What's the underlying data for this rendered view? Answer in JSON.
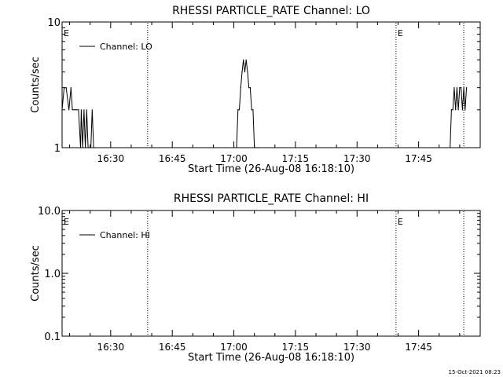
{
  "colors": {
    "background": "#ffffff",
    "foreground": "#000000"
  },
  "timestamp": "15-Oct-2021 08:23",
  "chart_data": [
    {
      "type": "line",
      "title": "RHESSI PARTICLE_RATE Channel: LO",
      "xlabel": "Start Time (26-Aug-08 16:18:10)",
      "ylabel": "Counts/sec",
      "yscale": "log",
      "ylim": [
        1,
        10
      ],
      "ytick_labels": [
        "1",
        "10"
      ],
      "xlim": [
        "16:18:10",
        "18:00:00"
      ],
      "xtick_labels": [
        "16:30",
        "16:45",
        "17:00",
        "17:15",
        "17:30",
        "17:45"
      ],
      "legend": {
        "position": "top-left",
        "entries": [
          "Channel: LO"
        ]
      },
      "markers": [
        {
          "label": "E",
          "time": "16:18:10"
        },
        {
          "label": "",
          "time": "16:39:00"
        },
        {
          "label": "E",
          "time": "17:39:30"
        },
        {
          "label": "",
          "time": "17:56:00"
        }
      ],
      "series": [
        {
          "name": "Channel: LO",
          "x": [
            "16:18:10",
            "16:18:40",
            "16:19:10",
            "16:19:50",
            "16:20:20",
            "16:20:40",
            "16:21:10",
            "16:21:40",
            "16:22:10",
            "16:22:40",
            "16:22:50",
            "16:23:10",
            "16:23:30",
            "16:23:50",
            "16:24:10",
            "16:24:30",
            "16:24:50",
            "16:25:10",
            "16:25:30",
            "16:25:50",
            "16:26:10",
            "17:00:40",
            "17:01:00",
            "17:01:20",
            "17:01:40",
            "17:02:00",
            "17:02:20",
            "17:02:40",
            "17:03:00",
            "17:03:20",
            "17:03:40",
            "17:04:00",
            "17:04:20",
            "17:04:40",
            "17:05:00",
            "17:05:20",
            "17:05:40",
            "17:06:00",
            "17:52:40",
            "17:53:00",
            "17:53:20",
            "17:53:40",
            "17:54:00",
            "17:54:20",
            "17:54:40",
            "17:55:00",
            "17:55:20",
            "17:55:40",
            "17:56:00",
            "17:56:20",
            "17:56:40"
          ],
          "values": [
            2,
            3,
            3,
            2,
            3,
            2,
            2,
            2,
            2,
            1,
            2,
            1,
            2,
            1,
            2,
            1,
            1,
            1,
            2,
            1,
            1,
            1,
            2,
            2,
            3,
            4,
            5,
            4,
            5,
            4,
            3,
            3,
            2,
            2,
            1,
            1,
            1,
            1,
            1,
            2,
            2,
            3,
            2,
            3,
            2,
            3,
            3,
            2,
            3,
            2,
            3
          ]
        }
      ]
    },
    {
      "type": "line",
      "title": "RHESSI PARTICLE_RATE Channel: HI",
      "xlabel": "Start Time (26-Aug-08 16:18:10)",
      "ylabel": "Counts/sec",
      "yscale": "log",
      "ylim": [
        0.1,
        10
      ],
      "ytick_labels": [
        "0.1",
        "1.0",
        "10.0"
      ],
      "xlim": [
        "16:18:10",
        "18:00:00"
      ],
      "xtick_labels": [
        "16:30",
        "16:45",
        "17:00",
        "17:15",
        "17:30",
        "17:45"
      ],
      "legend": {
        "position": "top-left",
        "entries": [
          "Channel: HI"
        ]
      },
      "markers": [
        {
          "label": "E",
          "time": "16:18:10"
        },
        {
          "label": "",
          "time": "16:39:00"
        },
        {
          "label": "E",
          "time": "17:39:30"
        },
        {
          "label": "",
          "time": "17:56:00"
        }
      ],
      "series": [
        {
          "name": "Channel: HI",
          "x": [],
          "values": []
        }
      ]
    }
  ]
}
